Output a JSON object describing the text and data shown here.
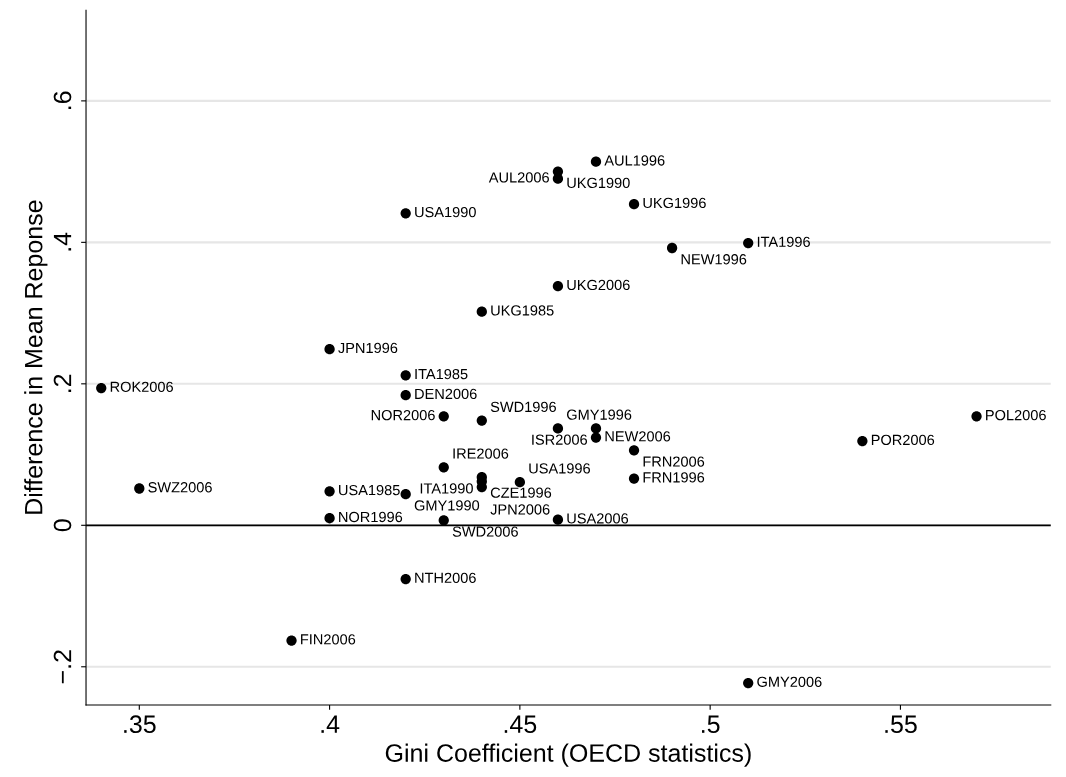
{
  "chart_data": {
    "type": "scatter",
    "xlabel": "Gini Coefficient (OECD statistics)",
    "ylabel": "Difference in Mean Reponse",
    "x": [
      0.34,
      0.35,
      0.39,
      0.4,
      0.4,
      0.4,
      0.42,
      0.42,
      0.42,
      0.42,
      0.42,
      0.43,
      0.43,
      0.43,
      0.44,
      0.44,
      0.44,
      0.44,
      0.44,
      0.45,
      0.46,
      0.46,
      0.46,
      0.46,
      0.46,
      0.47,
      0.47,
      0.47,
      0.48,
      0.48,
      0.48,
      0.49,
      0.51,
      0.51,
      0.54,
      0.57
    ],
    "values": [
      0.194,
      0.052,
      -0.163,
      0.249,
      0.048,
      0.01,
      0.441,
      0.212,
      0.184,
      0.044,
      -0.076,
      0.154,
      0.082,
      0.007,
      0.302,
      0.148,
      0.068,
      0.062,
      0.054,
      0.061,
      0.5,
      0.49,
      0.338,
      0.137,
      0.008,
      0.514,
      0.137,
      0.124,
      0.454,
      0.106,
      0.066,
      0.392,
      0.399,
      -0.223,
      0.119,
      0.154
    ],
    "value_labels": [
      "ROK2006",
      "SWZ2006",
      "FIN2006",
      "JPN1996",
      "USA1985",
      "NOR1996",
      "USA1990",
      "ITA1985",
      "DEN2006",
      "GMY1990",
      "NTH2006",
      "NOR2006",
      "IRE2006",
      "SWD2006",
      "UKG1985",
      "SWD1996",
      "ITA1990",
      "CZE1996",
      "JPN2006",
      "USA1996",
      "UKG1990",
      "AUL2006",
      "UKG2006",
      "GMY1996",
      "USA2006",
      "AUL1996",
      "ISR2006",
      "NEW2006",
      "UKG1996",
      "FRN2006",
      "FRN1996",
      "NEW1996",
      "ITA1996",
      "GMY2006",
      "POR2006",
      "POL2006"
    ],
    "color": "#000000",
    "marker": "circle",
    "xlim": [
      0.336,
      0.5895
    ],
    "xticks": [
      {
        "value": 0.35,
        "label": ".35"
      },
      {
        "value": 0.4,
        "label": ".4"
      },
      {
        "value": 0.45,
        "label": ".45"
      },
      {
        "value": 0.5,
        "label": ".5"
      },
      {
        "value": 0.55,
        "label": ".55"
      }
    ],
    "ylim": [
      -0.254,
      0.728
    ],
    "yticks": [
      {
        "value": -0.2,
        "label": "−.2"
      },
      {
        "value": 0,
        "label": "0"
      },
      {
        "value": 0.2,
        "label": ".2"
      },
      {
        "value": 0.4,
        "label": ".4"
      },
      {
        "value": 0.6,
        "label": ".6"
      }
    ],
    "grid": "y",
    "ref_lines": [
      {
        "axis": "y",
        "value": 0,
        "color": "#000000"
      }
    ]
  }
}
